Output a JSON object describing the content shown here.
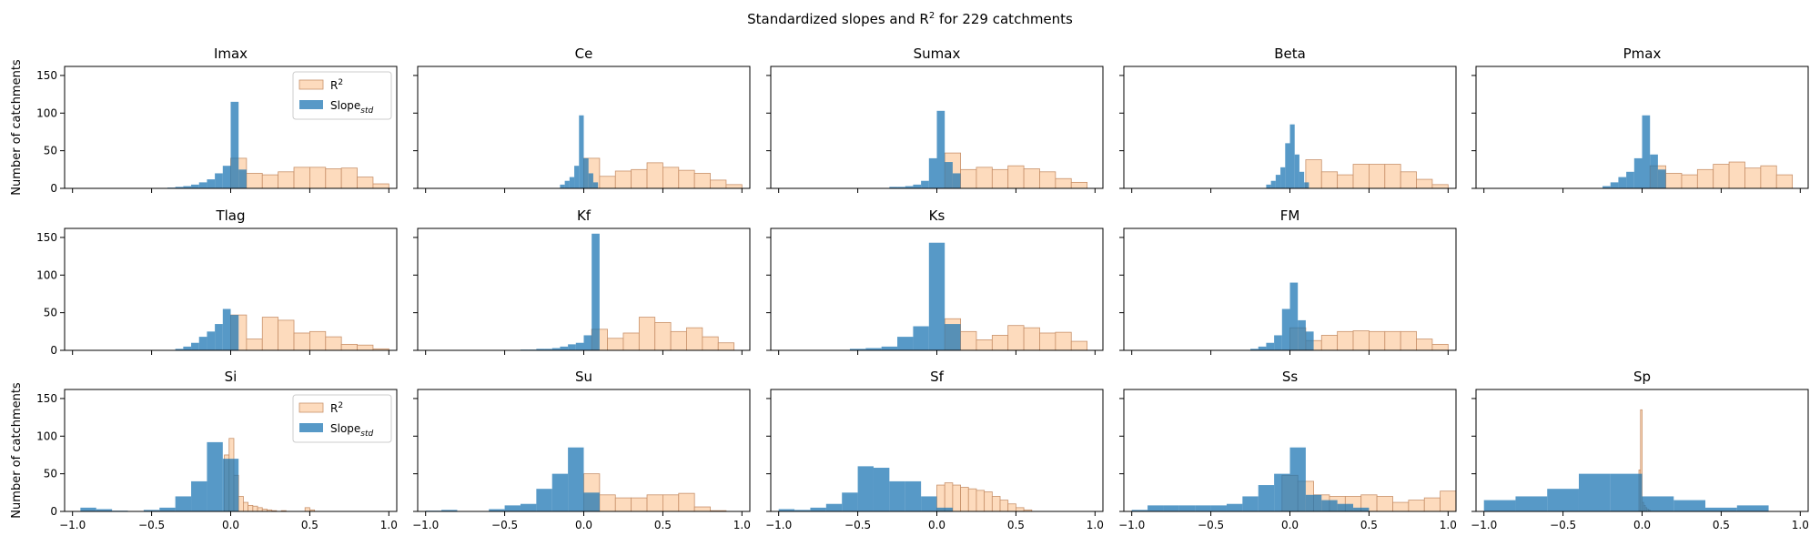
{
  "figure": {
    "title_prefix": "Standardized slopes and R",
    "title_sup": "2",
    "title_suffix": " for 229 catchments"
  },
  "colors": {
    "r2_fill": "#fdd9b9",
    "r2_edge": "#c8916a",
    "slope_fill": "#1f77b4"
  },
  "chart_data": {
    "type": "bar",
    "subtype": "histogram-grid",
    "xlim": [
      -1.05,
      1.05
    ],
    "ylim": [
      0,
      162
    ],
    "xticks": [
      -1.0,
      -0.5,
      0.0,
      0.5,
      1.0
    ],
    "xtick_labels": [
      "−1.0",
      "−0.5",
      "0.0",
      "0.5",
      "1.0"
    ],
    "yticks": [
      0,
      50,
      100,
      150
    ],
    "ylabel": "Number of catchments",
    "legend": {
      "placement": "top-right",
      "entries": [
        {
          "series": "r2",
          "base": "R",
          "sup": "2",
          "sub": ""
        },
        {
          "series": "slope",
          "base": "Slope",
          "sup": "",
          "sub": "std"
        }
      ]
    },
    "panels": [
      {
        "title": "Imax",
        "legend": true,
        "r2": {
          "edges": [
            0,
            0.1,
            0.2,
            0.3,
            0.4,
            0.5,
            0.6,
            0.7,
            0.8,
            0.9,
            1.0
          ],
          "counts": [
            40,
            20,
            18,
            22,
            28,
            28,
            26,
            27,
            15,
            6
          ]
        },
        "slope": {
          "edges": [
            -0.4,
            -0.35,
            -0.3,
            -0.25,
            -0.2,
            -0.15,
            -0.1,
            -0.05,
            0,
            0.05,
            0.1
          ],
          "counts": [
            1,
            2,
            3,
            5,
            8,
            12,
            20,
            30,
            115,
            25
          ]
        }
      },
      {
        "title": "Ce",
        "r2": {
          "edges": [
            0,
            0.1,
            0.2,
            0.3,
            0.4,
            0.5,
            0.6,
            0.7,
            0.8,
            0.9,
            1.0
          ],
          "counts": [
            40,
            16,
            23,
            25,
            34,
            28,
            24,
            20,
            11,
            5
          ]
        },
        "slope": {
          "edges": [
            -0.15,
            -0.12,
            -0.09,
            -0.06,
            -0.03,
            0,
            0.03,
            0.06,
            0.09
          ],
          "counts": [
            5,
            10,
            15,
            30,
            97,
            40,
            20,
            8
          ]
        }
      },
      {
        "title": "Sumax",
        "r2": {
          "edges": [
            0.05,
            0.15,
            0.25,
            0.35,
            0.45,
            0.55,
            0.65,
            0.75,
            0.85,
            0.95
          ],
          "counts": [
            47,
            25,
            28,
            25,
            30,
            26,
            22,
            13,
            8
          ]
        },
        "slope": {
          "edges": [
            -0.3,
            -0.25,
            -0.2,
            -0.15,
            -0.1,
            -0.05,
            0,
            0.05,
            0.1,
            0.15
          ],
          "counts": [
            2,
            2,
            3,
            5,
            10,
            40,
            103,
            35,
            20
          ]
        }
      },
      {
        "title": "Beta",
        "r2": {
          "edges": [
            0.1,
            0.2,
            0.3,
            0.4,
            0.5,
            0.6,
            0.7,
            0.8,
            0.9,
            1.0
          ],
          "counts": [
            38,
            22,
            18,
            32,
            32,
            32,
            22,
            12,
            5
          ]
        },
        "slope": {
          "edges": [
            -0.15,
            -0.12,
            -0.09,
            -0.06,
            -0.03,
            0,
            0.03,
            0.06,
            0.09,
            0.12
          ],
          "counts": [
            5,
            10,
            18,
            28,
            60,
            85,
            45,
            22,
            8
          ]
        }
      },
      {
        "title": "Pmax",
        "r2": {
          "edges": [
            0.05,
            0.15,
            0.25,
            0.35,
            0.45,
            0.55,
            0.65,
            0.75,
            0.85,
            0.95
          ],
          "counts": [
            30,
            20,
            18,
            25,
            32,
            35,
            27,
            30,
            18
          ]
        },
        "slope": {
          "edges": [
            -0.25,
            -0.2,
            -0.15,
            -0.1,
            -0.05,
            0,
            0.05,
            0.1,
            0.15
          ],
          "counts": [
            3,
            8,
            15,
            22,
            40,
            97,
            45,
            25
          ]
        }
      },
      {
        "title": "Tlag",
        "r2": {
          "edges": [
            0,
            0.1,
            0.2,
            0.3,
            0.4,
            0.5,
            0.6,
            0.7,
            0.8,
            0.9,
            1.0
          ],
          "counts": [
            47,
            15,
            44,
            40,
            23,
            25,
            18,
            8,
            7,
            2
          ]
        },
        "slope": {
          "edges": [
            -0.35,
            -0.3,
            -0.25,
            -0.2,
            -0.15,
            -0.1,
            -0.05,
            0,
            0.05
          ],
          "counts": [
            2,
            5,
            10,
            18,
            25,
            35,
            55,
            47
          ]
        }
      },
      {
        "title": "Kf",
        "r2": {
          "edges": [
            0.05,
            0.15,
            0.25,
            0.35,
            0.45,
            0.55,
            0.65,
            0.75,
            0.85,
            0.95
          ],
          "counts": [
            28,
            16,
            23,
            44,
            37,
            25,
            30,
            18,
            10
          ]
        },
        "slope": {
          "edges": [
            -0.4,
            -0.35,
            -0.3,
            -0.25,
            -0.2,
            -0.15,
            -0.1,
            -0.05,
            0,
            0.05,
            0.1
          ],
          "counts": [
            1,
            1,
            2,
            2,
            3,
            5,
            8,
            10,
            20,
            155
          ]
        }
      },
      {
        "title": "Ks",
        "r2": {
          "edges": [
            0.05,
            0.15,
            0.25,
            0.35,
            0.45,
            0.55,
            0.65,
            0.75,
            0.85,
            0.95
          ],
          "counts": [
            42,
            25,
            14,
            20,
            33,
            30,
            23,
            24,
            12
          ]
        },
        "slope": {
          "edges": [
            -0.55,
            -0.45,
            -0.35,
            -0.25,
            -0.15,
            -0.05,
            0.05,
            0.15
          ],
          "counts": [
            2,
            3,
            5,
            18,
            32,
            143,
            35
          ]
        }
      },
      {
        "title": "FM",
        "r2": {
          "edges": [
            0,
            0.1,
            0.2,
            0.3,
            0.4,
            0.5,
            0.6,
            0.7,
            0.8,
            0.9,
            1.0
          ],
          "counts": [
            30,
            13,
            20,
            25,
            26,
            25,
            25,
            25,
            15,
            8
          ]
        },
        "slope": {
          "edges": [
            -0.25,
            -0.2,
            -0.15,
            -0.1,
            -0.05,
            0,
            0.05,
            0.1,
            0.15
          ],
          "counts": [
            2,
            5,
            10,
            20,
            55,
            90,
            40,
            25
          ]
        }
      },
      {
        "title": "Si",
        "legend": true,
        "r2": {
          "edges": [
            -0.04,
            -0.01,
            0.02,
            0.05,
            0.08,
            0.11,
            0.14,
            0.17,
            0.2,
            0.23,
            0.26,
            0.29,
            0.32,
            0.35,
            0.38,
            0.41,
            0.44,
            0.47,
            0.5,
            0.53,
            0.56
          ],
          "counts": [
            75,
            97,
            48,
            20,
            12,
            8,
            7,
            5,
            3,
            2,
            1,
            0,
            1,
            0,
            0,
            0,
            0,
            5,
            2,
            0
          ]
        },
        "slope": {
          "edges": [
            -0.95,
            -0.85,
            -0.75,
            -0.65,
            -0.55,
            -0.45,
            -0.35,
            -0.25,
            -0.15,
            -0.05,
            0.05
          ],
          "counts": [
            5,
            3,
            1,
            0,
            2,
            5,
            20,
            40,
            92,
            70
          ]
        }
      },
      {
        "title": "Su",
        "r2": {
          "edges": [
            0,
            0.1,
            0.2,
            0.3,
            0.4,
            0.5,
            0.6,
            0.7,
            0.8,
            0.9,
            1.0
          ],
          "counts": [
            50,
            22,
            18,
            18,
            22,
            22,
            24,
            6,
            1,
            0
          ]
        },
        "slope": {
          "edges": [
            -1.0,
            -0.9,
            -0.8,
            -0.7,
            -0.6,
            -0.5,
            -0.4,
            -0.3,
            -0.2,
            -0.1,
            0,
            0.1
          ],
          "counts": [
            1,
            2,
            0,
            0,
            3,
            8,
            10,
            30,
            50,
            85,
            25
          ]
        }
      },
      {
        "title": "Sf",
        "r2": {
          "edges": [
            0,
            0.05,
            0.1,
            0.15,
            0.2,
            0.25,
            0.3,
            0.35,
            0.4,
            0.45,
            0.5,
            0.55,
            0.6
          ],
          "counts": [
            35,
            38,
            35,
            32,
            30,
            28,
            26,
            20,
            15,
            10,
            5,
            2
          ]
        },
        "slope": {
          "edges": [
            -1.0,
            -0.9,
            -0.8,
            -0.7,
            -0.6,
            -0.5,
            -0.4,
            -0.3,
            -0.2,
            -0.1,
            0,
            0.1
          ],
          "counts": [
            3,
            2,
            5,
            10,
            25,
            60,
            58,
            40,
            40,
            20,
            5
          ]
        }
      },
      {
        "title": "Ss",
        "r2": {
          "edges": [
            -0.05,
            0.05,
            0.15,
            0.25,
            0.35,
            0.45,
            0.55,
            0.65,
            0.75,
            0.85,
            0.95,
            1.05
          ],
          "counts": [
            48,
            40,
            22,
            20,
            20,
            22,
            20,
            12,
            15,
            18,
            27
          ]
        },
        "slope": {
          "edges": [
            -1.0,
            -0.9,
            -0.8,
            -0.7,
            -0.6,
            -0.5,
            -0.4,
            -0.3,
            -0.2,
            -0.1,
            0,
            0.1,
            0.2,
            0.3,
            0.4,
            0.5
          ],
          "counts": [
            2,
            8,
            8,
            8,
            8,
            8,
            10,
            20,
            35,
            50,
            85,
            22,
            15,
            10,
            5
          ]
        }
      },
      {
        "title": "Sp",
        "r2": {
          "edges": [
            -0.02,
            -0.01,
            0,
            0.01,
            0.02,
            0.03,
            0.04,
            0.05
          ],
          "counts": [
            55,
            135,
            12,
            8,
            5,
            3,
            2
          ]
        },
        "slope": {
          "edges": [
            -1.0,
            -0.8,
            -0.6,
            -0.4,
            -0.2,
            0,
            0.2,
            0.4,
            0.6,
            0.8
          ],
          "counts": [
            15,
            20,
            30,
            50,
            50,
            20,
            15,
            5,
            8
          ]
        }
      }
    ]
  }
}
